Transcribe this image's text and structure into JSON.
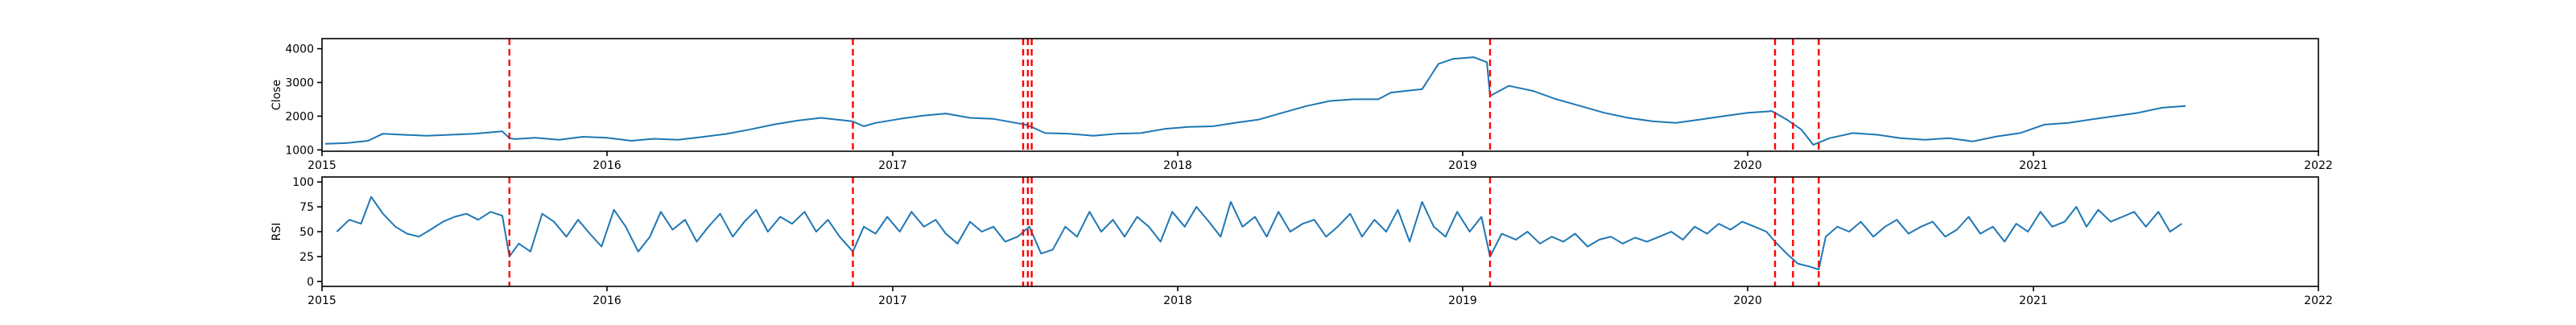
{
  "chart_data": [
    {
      "type": "line",
      "title": "",
      "xlabel": "",
      "ylabel": "Close",
      "xlim": [
        "2015-01-01",
        "2022-01-01"
      ],
      "ylim": [
        960,
        4300
      ],
      "x_ticks": [
        "2015",
        "2016",
        "2017",
        "2018",
        "2019",
        "2020",
        "2021",
        "2022"
      ],
      "y_ticks": [
        1000,
        2000,
        3000,
        4000
      ],
      "grid": false,
      "line_color": "#1f77b4",
      "series": [
        {
          "x": [
            "2015-01-05",
            "2015-02-01",
            "2015-03-01",
            "2015-03-20",
            "2015-04-15",
            "2015-05-15",
            "2015-06-15",
            "2015-07-15",
            "2015-08-20",
            "2015-08-29",
            "2015-09-05",
            "2015-10-01",
            "2015-11-01",
            "2015-12-01",
            "2016-01-01",
            "2016-02-01",
            "2016-03-01",
            "2016-04-01",
            "2016-05-01",
            "2016-06-01",
            "2016-07-01",
            "2016-08-01",
            "2016-09-01",
            "2016-10-01",
            "2016-11-10",
            "2016-11-25",
            "2016-12-10",
            "2017-01-10",
            "2017-02-10",
            "2017-03-10",
            "2017-04-10",
            "2017-05-10",
            "2017-06-20",
            "2017-07-01",
            "2017-07-15",
            "2017-08-15",
            "2017-09-15",
            "2017-10-15",
            "2017-11-15",
            "2017-12-15",
            "2018-01-15",
            "2018-02-15",
            "2018-03-15",
            "2018-04-15",
            "2018-05-15",
            "2018-06-15",
            "2018-07-15",
            "2018-08-15",
            "2018-09-15",
            "2018-10-01",
            "2018-10-20",
            "2018-11-10",
            "2018-12-01",
            "2018-12-20",
            "2019-01-15",
            "2019-02-01",
            "2019-02-05",
            "2019-03-01",
            "2019-04-01",
            "2019-05-01",
            "2019-06-01",
            "2019-07-01",
            "2019-08-01",
            "2019-09-01",
            "2019-10-01",
            "2019-11-01",
            "2019-12-01",
            "2020-01-01",
            "2020-02-01",
            "2020-02-20",
            "2020-03-10",
            "2020-03-25",
            "2020-04-15",
            "2020-05-15",
            "2020-06-15",
            "2020-07-15",
            "2020-08-15",
            "2020-09-15",
            "2020-10-15",
            "2020-11-15",
            "2020-12-15",
            "2021-01-15",
            "2021-02-15",
            "2021-03-15",
            "2021-04-15",
            "2021-05-15",
            "2021-06-15",
            "2021-07-15"
          ],
          "y": [
            1180,
            1200,
            1270,
            1480,
            1450,
            1420,
            1450,
            1480,
            1550,
            1350,
            1320,
            1360,
            1300,
            1390,
            1360,
            1270,
            1330,
            1300,
            1380,
            1470,
            1600,
            1750,
            1870,
            1950,
            1850,
            1700,
            1800,
            1920,
            2020,
            2080,
            1950,
            1920,
            1750,
            1650,
            1500,
            1480,
            1420,
            1480,
            1500,
            1620,
            1680,
            1700,
            1800,
            1900,
            2100,
            2300,
            2450,
            2500,
            2500,
            2700,
            2750,
            2800,
            3550,
            3700,
            3750,
            3600,
            2600,
            2900,
            2750,
            2500,
            2300,
            2100,
            1950,
            1850,
            1800,
            1900,
            2000,
            2100,
            2150,
            1900,
            1600,
            1150,
            1350,
            1500,
            1450,
            1350,
            1300,
            1350,
            1250,
            1400,
            1500,
            1750,
            1800,
            1900,
            2000,
            2100,
            2250,
            2300
          ]
        }
      ],
      "vlines": [
        "2015-08-29",
        "2016-11-11",
        "2017-06-17",
        "2017-06-23",
        "2017-06-28",
        "2019-02-05",
        "2020-02-05",
        "2020-02-28",
        "2020-04-01"
      ],
      "vline_color": "#ff0000"
    },
    {
      "type": "line",
      "title": "",
      "xlabel": "",
      "ylabel": "RSI",
      "xlim": [
        "2015-01-01",
        "2022-01-01"
      ],
      "ylim": [
        -5,
        105
      ],
      "x_ticks": [
        "2015",
        "2016",
        "2017",
        "2018",
        "2019",
        "2020",
        "2021",
        "2022"
      ],
      "y_ticks": [
        0,
        25,
        50,
        75,
        100
      ],
      "grid": false,
      "line_color": "#1f77b4",
      "series": [
        {
          "x": [
            "2015-01-20",
            "2015-02-05",
            "2015-02-20",
            "2015-03-05",
            "2015-03-20",
            "2015-04-05",
            "2015-04-20",
            "2015-05-05",
            "2015-05-20",
            "2015-06-05",
            "2015-06-20",
            "2015-07-05",
            "2015-07-20",
            "2015-08-05",
            "2015-08-20",
            "2015-08-29",
            "2015-09-10",
            "2015-09-25",
            "2015-10-10",
            "2015-10-25",
            "2015-11-10",
            "2015-11-25",
            "2015-12-10",
            "2015-12-25",
            "2016-01-10",
            "2016-01-25",
            "2016-02-10",
            "2016-02-25",
            "2016-03-10",
            "2016-03-25",
            "2016-04-10",
            "2016-04-25",
            "2016-05-10",
            "2016-05-25",
            "2016-06-10",
            "2016-06-25",
            "2016-07-10",
            "2016-07-25",
            "2016-08-10",
            "2016-08-25",
            "2016-09-10",
            "2016-09-25",
            "2016-10-10",
            "2016-10-25",
            "2016-11-11",
            "2016-11-25",
            "2016-12-10",
            "2016-12-25",
            "2017-01-10",
            "2017-01-25",
            "2017-02-10",
            "2017-02-25",
            "2017-03-10",
            "2017-03-25",
            "2017-04-10",
            "2017-04-25",
            "2017-05-10",
            "2017-05-25",
            "2017-06-10",
            "2017-06-25",
            "2017-07-10",
            "2017-07-25",
            "2017-08-10",
            "2017-08-25",
            "2017-09-10",
            "2017-09-25",
            "2017-10-10",
            "2017-10-25",
            "2017-11-10",
            "2017-11-25",
            "2017-12-10",
            "2017-12-25",
            "2018-01-10",
            "2018-01-25",
            "2018-02-10",
            "2018-02-25",
            "2018-03-10",
            "2018-03-25",
            "2018-04-10",
            "2018-04-25",
            "2018-05-10",
            "2018-05-25",
            "2018-06-10",
            "2018-06-25",
            "2018-07-10",
            "2018-07-25",
            "2018-08-10",
            "2018-08-25",
            "2018-09-10",
            "2018-09-25",
            "2018-10-10",
            "2018-10-25",
            "2018-11-10",
            "2018-11-25",
            "2018-12-10",
            "2018-12-25",
            "2019-01-10",
            "2019-01-25",
            "2019-02-05",
            "2019-02-20",
            "2019-03-10",
            "2019-03-25",
            "2019-04-10",
            "2019-04-25",
            "2019-05-10",
            "2019-05-25",
            "2019-06-10",
            "2019-06-25",
            "2019-07-10",
            "2019-07-25",
            "2019-08-10",
            "2019-08-25",
            "2019-09-10",
            "2019-09-25",
            "2019-10-10",
            "2019-10-25",
            "2019-11-10",
            "2019-11-25",
            "2019-12-10",
            "2019-12-25",
            "2020-01-10",
            "2020-01-25",
            "2020-02-05",
            "2020-02-20",
            "2020-03-05",
            "2020-03-20",
            "2020-04-01",
            "2020-04-10",
            "2020-04-25",
            "2020-05-10",
            "2020-05-25",
            "2020-06-10",
            "2020-06-25",
            "2020-07-10",
            "2020-07-25",
            "2020-08-10",
            "2020-08-25",
            "2020-09-10",
            "2020-09-25",
            "2020-10-10",
            "2020-10-25",
            "2020-11-10",
            "2020-11-25",
            "2020-12-10",
            "2020-12-25",
            "2021-01-10",
            "2021-01-25",
            "2021-02-10",
            "2021-02-25",
            "2021-03-10",
            "2021-03-25",
            "2021-04-10",
            "2021-04-25",
            "2021-05-10",
            "2021-05-25",
            "2021-06-10",
            "2021-06-25",
            "2021-07-10"
          ],
          "y": [
            50,
            62,
            58,
            85,
            68,
            55,
            48,
            45,
            52,
            60,
            65,
            68,
            62,
            70,
            66,
            25,
            38,
            30,
            68,
            60,
            45,
            62,
            48,
            35,
            72,
            55,
            30,
            45,
            70,
            52,
            62,
            40,
            55,
            68,
            45,
            60,
            72,
            50,
            65,
            58,
            70,
            50,
            62,
            45,
            30,
            55,
            48,
            65,
            50,
            70,
            55,
            62,
            48,
            38,
            60,
            50,
            55,
            40,
            45,
            55,
            28,
            32,
            55,
            45,
            70,
            50,
            62,
            45,
            65,
            55,
            40,
            70,
            55,
            75,
            60,
            45,
            80,
            55,
            65,
            45,
            70,
            50,
            58,
            62,
            45,
            55,
            68,
            45,
            62,
            50,
            72,
            40,
            80,
            55,
            45,
            70,
            50,
            65,
            25,
            48,
            42,
            50,
            38,
            45,
            40,
            48,
            35,
            42,
            45,
            38,
            44,
            40,
            45,
            50,
            42,
            55,
            48,
            58,
            52,
            60,
            55,
            50,
            40,
            28,
            18,
            15,
            12,
            45,
            55,
            50,
            60,
            45,
            55,
            62,
            48,
            55,
            60,
            45,
            52,
            65,
            48,
            55,
            40,
            58,
            50,
            70,
            55,
            60,
            75,
            55,
            72,
            60,
            65,
            70,
            55,
            70,
            50,
            58
          ]
        }
      ],
      "vlines": [
        "2015-08-29",
        "2016-11-11",
        "2017-06-17",
        "2017-06-23",
        "2017-06-28",
        "2019-02-05",
        "2020-02-05",
        "2020-02-28",
        "2020-04-01"
      ],
      "vline_color": "#ff0000"
    }
  ]
}
